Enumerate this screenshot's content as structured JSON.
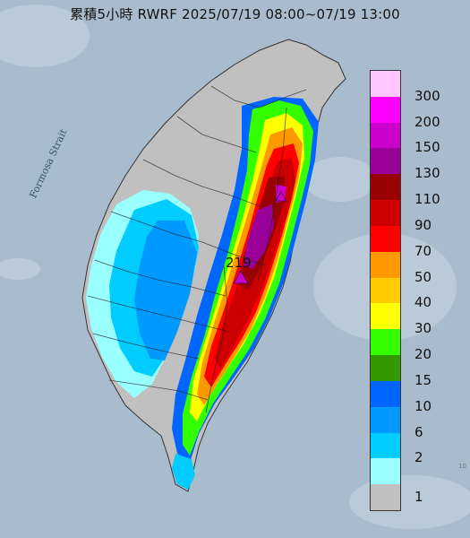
{
  "title": "累積5小時 RWRF 2025/07/19 08:00~07/19 13:00",
  "strait_label": "Formosa Strait",
  "max_value": "219",
  "corner_mark": "10",
  "legend": [
    {
      "label": "300",
      "color": "#ffc6ff"
    },
    {
      "label": "200",
      "color": "#ff00ff"
    },
    {
      "label": "150",
      "color": "#cc00cc"
    },
    {
      "label": "130",
      "color": "#990099"
    },
    {
      "label": "110",
      "color": "#990000"
    },
    {
      "label": "90",
      "color": "#cc0000"
    },
    {
      "label": "70",
      "color": "#ff0000"
    },
    {
      "label": "50",
      "color": "#ff9900"
    },
    {
      "label": "40",
      "color": "#ffcc00"
    },
    {
      "label": "30",
      "color": "#ffff00"
    },
    {
      "label": "20",
      "color": "#33ff00"
    },
    {
      "label": "15",
      "color": "#339900"
    },
    {
      "label": "10",
      "color": "#0066ff"
    },
    {
      "label": "6",
      "color": "#0099ff"
    },
    {
      "label": "2",
      "color": "#00ccff"
    },
    {
      "label": "1",
      "color": "#99ffff"
    },
    {
      "label": "",
      "color": "#c0c0c0"
    }
  ]
}
